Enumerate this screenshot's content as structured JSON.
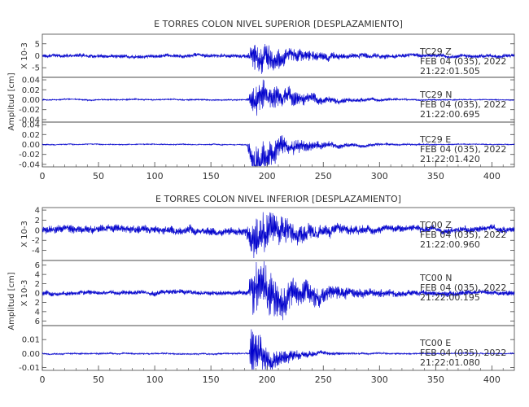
{
  "sections": [
    {
      "title": "E TORRES COLON NIVEL SUPERIOR [DESPLAZAMIENTO]",
      "ylabel": "Amplitud [cm]",
      "xaxis": {
        "range": [
          0,
          420
        ],
        "ticks": [
          0,
          50,
          100,
          150,
          200,
          250,
          300,
          350,
          400
        ]
      },
      "panels": [
        {
          "scale_label": "X 10-3",
          "ylim": [
            -9,
            9
          ],
          "yticks": [
            5,
            0,
            -5
          ],
          "tick_labels": [
            "5",
            "0",
            "-5"
          ],
          "label": {
            "channel": "TC29   Z",
            "date": "FEB 04 (035), 2022",
            "time": "21:22:01.505"
          }
        },
        {
          "scale_label": "",
          "ylim": [
            -0.045,
            0.045
          ],
          "yticks": [
            0.04,
            0.02,
            0.0,
            -0.02,
            -0.04
          ],
          "tick_labels": [
            "0.04",
            "0.02",
            "0.00",
            "-0.02",
            "-0.04"
          ],
          "label": {
            "channel": "TC29   N",
            "date": "FEB 04 (035), 2022",
            "time": "21:22:00.695"
          }
        },
        {
          "scale_label": "",
          "ylim": [
            -0.045,
            0.045
          ],
          "yticks": [
            0.04,
            0.02,
            0.0,
            -0.02,
            -0.04
          ],
          "tick_labels": [
            "0.04",
            "0.02",
            "0.00",
            "-0.02",
            "-0.04"
          ],
          "label": {
            "channel": "TC29   E",
            "date": "FEB 04 (035), 2022",
            "time": "21:22:01.420"
          }
        }
      ]
    },
    {
      "title": "E TORRES COLON NIVEL INFERIOR [DESPLAZAMIENTO]",
      "ylabel": "Amplitud [cm]",
      "xaxis": {
        "range": [
          0,
          420
        ],
        "ticks": [
          0,
          50,
          100,
          150,
          200,
          250,
          300,
          350,
          400
        ]
      },
      "panels": [
        {
          "scale_label": "X 10-3",
          "ylim": [
            -6,
            4.5
          ],
          "yticks": [
            4,
            2,
            0,
            -2,
            -4
          ],
          "tick_labels": [
            "4",
            "2",
            "0",
            "-2",
            "-4"
          ],
          "label": {
            "channel": "TC00   Z",
            "date": "FEB 04 (035), 2022",
            "time": "21:22:00.960"
          }
        },
        {
          "scale_label": "X 10-3",
          "ylim": [
            -7,
            7
          ],
          "yticks": [
            6,
            4,
            2,
            0,
            -2,
            -4,
            -6
          ],
          "tick_labels": [
            "6",
            "4",
            "2",
            "0",
            "2",
            "4",
            "6"
          ],
          "label": {
            "channel": "TC00   N",
            "date": "FEB 04 (035), 2022",
            "time": "21:22:00.195"
          }
        },
        {
          "scale_label": "",
          "ylim": [
            -0.012,
            0.02
          ],
          "yticks": [
            0.01,
            0.0,
            -0.01
          ],
          "tick_labels": [
            "0.01",
            "0.00",
            "-0.01"
          ],
          "label": {
            "channel": "TC00   E",
            "date": "FEB 04 (035), 2022",
            "time": "21:22:01.080"
          }
        }
      ]
    }
  ],
  "chart_data": [
    {
      "type": "line",
      "title": "E TORRES COLON NIVEL SUPERIOR [DESPLAZAMIENTO]",
      "ylabel": "Amplitud [cm]",
      "xlim": [
        0,
        420
      ],
      "series": [
        {
          "name": "TC29   Z",
          "ylim": [
            -9,
            9
          ],
          "units_scale": "X 10-3",
          "envelope": {
            "pre": 0.8,
            "peak": 7.5,
            "onset": 182,
            "peak_time": 190,
            "decay": 30,
            "post": 0.8
          },
          "color": "#0000cc"
        },
        {
          "name": "TC29   N",
          "ylim": [
            -0.045,
            0.045
          ],
          "envelope": {
            "pre": 0.0015,
            "peak": 0.035,
            "onset": 182,
            "peak_time": 190,
            "decay": 38,
            "post": 0.001
          },
          "color": "#0000cc"
        },
        {
          "name": "TC29   E",
          "ylim": [
            -0.045,
            0.045
          ],
          "envelope": {
            "pre": 0.0012,
            "peak": 0.04,
            "onset": 182,
            "peak_time": 188,
            "decay": 35,
            "post": 0.001
          },
          "color": "#0000cc"
        }
      ]
    },
    {
      "type": "line",
      "title": "E TORRES COLON NIVEL INFERIOR [DESPLAZAMIENTO]",
      "ylabel": "Amplitud [cm]",
      "xlim": [
        0,
        420
      ],
      "series": [
        {
          "name": "TC00   Z",
          "ylim": [
            -6,
            4.5
          ],
          "units_scale": "X 10-3",
          "envelope": {
            "pre": 0.8,
            "peak": 4.5,
            "onset": 180,
            "peak_time": 190,
            "decay": 35,
            "post": 0.6
          },
          "color": "#0000cc"
        },
        {
          "name": "TC00   N",
          "ylim": [
            -7,
            7
          ],
          "units_scale": "X 10-3",
          "envelope": {
            "pre": 0.5,
            "peak": 6.5,
            "onset": 183,
            "peak_time": 188,
            "decay": 40,
            "post": 0.5
          },
          "color": "#0000cc"
        },
        {
          "name": "TC00   E",
          "ylim": [
            -0.012,
            0.02
          ],
          "envelope": {
            "pre": 0.0006,
            "peak": 0.018,
            "onset": 184,
            "peak_time": 186,
            "decay": 22,
            "post": 0.0005
          },
          "color": "#0000cc"
        }
      ]
    }
  ]
}
